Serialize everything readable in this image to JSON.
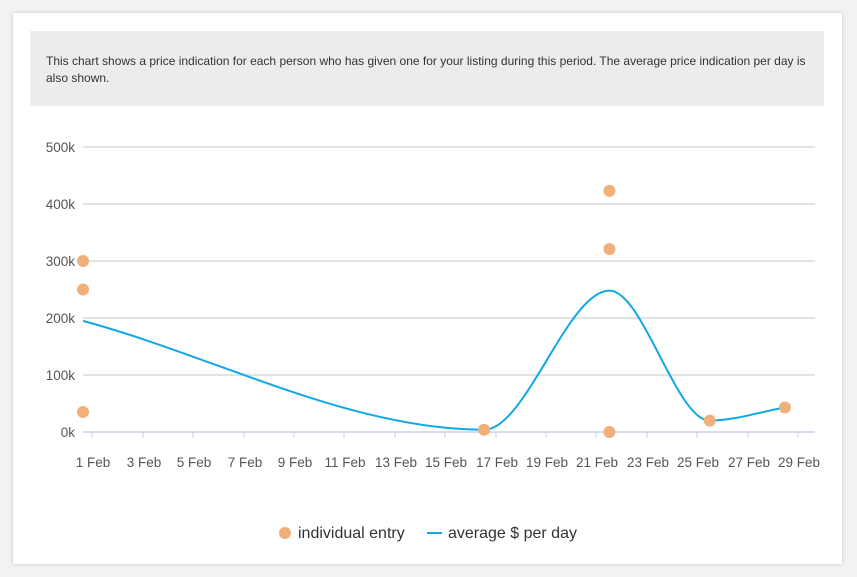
{
  "notice": "This chart shows a price indication for each person who has given one for your listing during this period. The average price indication per day is also shown.",
  "chart_data": {
    "type": "scatter",
    "title": "",
    "xlabel": "",
    "ylabel": "",
    "x_range": [
      "1 Feb",
      "29 Feb"
    ],
    "x_tick_labels": [
      "1 Feb",
      "3 Feb",
      "5 Feb",
      "7 Feb",
      "9 Feb",
      "11 Feb",
      "13 Feb",
      "15 Feb",
      "17 Feb",
      "19 Feb",
      "21 Feb",
      "23 Feb",
      "25 Feb",
      "27 Feb",
      "29 Feb"
    ],
    "y_ticks": [
      0,
      100000,
      200000,
      300000,
      400000,
      500000
    ],
    "y_tick_labels": [
      "0k",
      "100k",
      "200k",
      "300k",
      "400k",
      "500k"
    ],
    "ylim": [
      0,
      500000
    ],
    "grid": true,
    "legend_position": "bottom",
    "series": [
      {
        "name": "individual entry",
        "kind": "scatter",
        "color": "#f0b07a",
        "points": [
          {
            "x": 1,
            "y": 300000
          },
          {
            "x": 1,
            "y": 250000
          },
          {
            "x": 1,
            "y": 35000
          },
          {
            "x": 17,
            "y": 4000
          },
          {
            "x": 22,
            "y": 423000
          },
          {
            "x": 22,
            "y": 321000
          },
          {
            "x": 22,
            "y": 0
          },
          {
            "x": 26,
            "y": 20000
          },
          {
            "x": 29,
            "y": 43000
          }
        ]
      },
      {
        "name": "average $ per day",
        "kind": "line",
        "smooth": true,
        "color": "#11a8e5",
        "points": [
          {
            "x": 1,
            "y": 195000
          },
          {
            "x": 17,
            "y": 4000
          },
          {
            "x": 22,
            "y": 248000
          },
          {
            "x": 26,
            "y": 20000
          },
          {
            "x": 29,
            "y": 43000
          }
        ]
      }
    ]
  }
}
